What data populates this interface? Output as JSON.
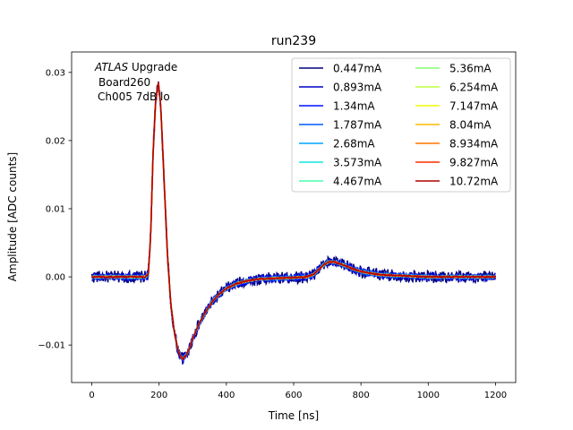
{
  "chart_data": {
    "type": "line",
    "title": "run239",
    "xlabel": "Time [ns]",
    "ylabel": "Amplitude [ADC counts]",
    "xlim": [
      -60,
      1260
    ],
    "ylim": [
      -0.0155,
      0.033
    ],
    "xticks": [
      0,
      200,
      400,
      600,
      800,
      1000,
      1200
    ],
    "yticks": [
      -0.01,
      0.0,
      0.01,
      0.02,
      0.03
    ],
    "ytick_labels": [
      "−0.01",
      "0.00",
      "0.01",
      "0.02",
      "0.03"
    ],
    "grid": false,
    "legend_placement": "top-right",
    "legend_columns": 2,
    "annotation": {
      "line1_italic": "ATLAS",
      "line1_rest": " Upgrade",
      "line2": "Board260",
      "line3": "Ch005 7dB lo"
    },
    "pulse_shape": {
      "x": [
        0,
        160,
        168,
        175,
        182,
        190,
        198,
        205,
        215,
        225,
        235,
        245,
        255,
        265,
        272,
        280,
        290,
        300,
        320,
        340,
        360,
        380,
        400,
        430,
        460,
        500,
        550,
        600,
        640,
        660,
        675,
        690,
        705,
        720,
        740,
        760,
        780,
        800,
        830,
        860,
        900,
        950,
        1000,
        1100,
        1200
      ],
      "y": [
        0.0,
        0.0,
        0.0005,
        0.006,
        0.018,
        0.026,
        0.0285,
        0.025,
        0.014,
        0.003,
        -0.004,
        -0.008,
        -0.0105,
        -0.0118,
        -0.012,
        -0.0115,
        -0.0105,
        -0.009,
        -0.0068,
        -0.005,
        -0.0035,
        -0.0025,
        -0.0017,
        -0.001,
        -0.0006,
        -0.0003,
        -0.0002,
        -0.0001,
        0.0,
        0.0004,
        0.0011,
        0.0018,
        0.0022,
        0.0022,
        0.0019,
        0.0015,
        0.0011,
        0.0008,
        0.0005,
        0.0003,
        0.0002,
        0.0001,
        0.0,
        0.0,
        0.0
      ]
    },
    "series": [
      {
        "name": "0.447mA",
        "color": "#00007f",
        "noise": 0.0009
      },
      {
        "name": "0.893mA",
        "color": "#0000c8",
        "noise": 0.0006
      },
      {
        "name": "1.34mA",
        "color": "#0010ff",
        "noise": 0.0004
      },
      {
        "name": "1.787mA",
        "color": "#0058ff",
        "noise": 0.0003
      },
      {
        "name": "2.68mA",
        "color": "#00a4ff",
        "noise": 0.0002
      },
      {
        "name": "3.573mA",
        "color": "#10e6e6",
        "noise": 0.00015
      },
      {
        "name": "4.467mA",
        "color": "#49ffad",
        "noise": 0.00012
      },
      {
        "name": "5.36mA",
        "color": "#84ff73",
        "noise": 0.0001
      },
      {
        "name": "6.254mA",
        "color": "#bbff3c",
        "noise": 0.0001
      },
      {
        "name": "7.147mA",
        "color": "#f4f802",
        "noise": 0.0001
      },
      {
        "name": "8.04mA",
        "color": "#ffb900",
        "noise": 0.0001
      },
      {
        "name": "8.934mA",
        "color": "#ff7300",
        "noise": 0.0001
      },
      {
        "name": "9.827mA",
        "color": "#ff2f00",
        "noise": 0.0001
      },
      {
        "name": "10.72mA",
        "color": "#b20000",
        "noise": 0.0001
      }
    ]
  }
}
